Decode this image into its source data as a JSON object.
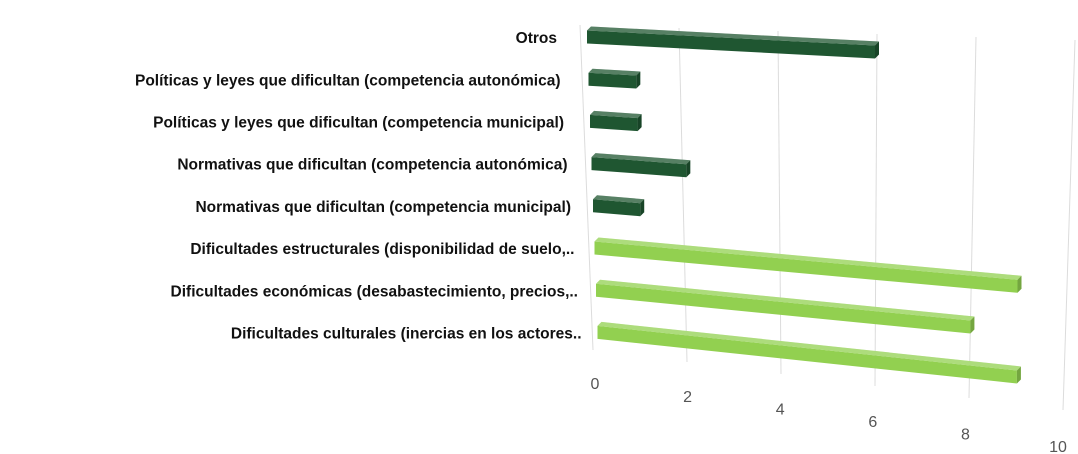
{
  "chart_data": {
    "type": "bar",
    "orientation": "horizontal",
    "categories": [
      "Otros",
      "Políticas y leyes que dificultan (competencia autonómica)",
      "Políticas y leyes que dificultan (competencia municipal)",
      "Normativas que dificultan (competencia autonómica)",
      "Normativas que dificultan (competencia municipal)",
      "Dificultades estructurales (disponibilidad de suelo,..",
      "Dificultades económicas (desabastecimiento, precios,..",
      "Dificultades culturales (inercias en los actores.."
    ],
    "values": [
      6,
      1,
      1,
      2,
      1,
      9,
      8,
      9
    ],
    "colors": [
      "#1f5631",
      "#1f5631",
      "#1f5631",
      "#1f5631",
      "#1f5631",
      "#92d050",
      "#92d050",
      "#92d050"
    ],
    "xlim": [
      0,
      10
    ],
    "xticks": [
      0,
      2,
      4,
      6,
      8,
      10
    ],
    "grid": true
  }
}
